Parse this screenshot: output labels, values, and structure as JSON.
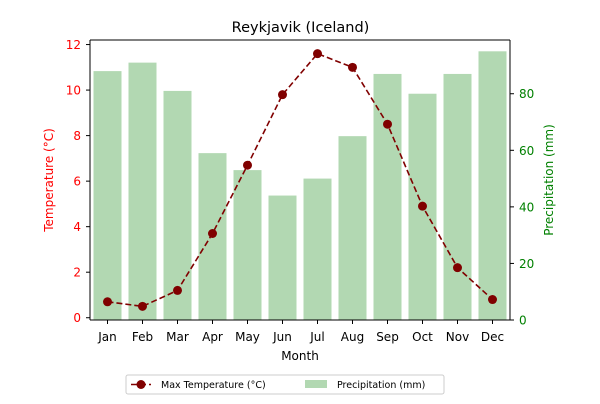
{
  "chart_data": {
    "type": "bar+line",
    "title": "Reykjavik (Iceland)",
    "categories": [
      "Jan",
      "Feb",
      "Mar",
      "Apr",
      "May",
      "Jun",
      "Jul",
      "Aug",
      "Sep",
      "Oct",
      "Nov",
      "Dec"
    ],
    "xlabel": "Month",
    "left_axis": {
      "label": "Temperature (°C)",
      "ylim": [
        -0.1,
        12.2
      ],
      "ticks": [
        0,
        2,
        4,
        6,
        8,
        10,
        12
      ],
      "color": "#ff0000"
    },
    "right_axis": {
      "label": "Precipitation (mm)",
      "ylim": [
        0,
        99
      ],
      "ticks": [
        0,
        20,
        40,
        60,
        80
      ],
      "color": "#008000"
    },
    "series": [
      {
        "name": "Max Temperature (°C)",
        "kind": "line",
        "axis": "left",
        "color": "#800000",
        "linestyle": "dashed",
        "marker": "circle",
        "values": [
          0.7,
          0.5,
          1.2,
          3.7,
          6.7,
          9.8,
          11.6,
          11.0,
          8.5,
          4.9,
          2.2,
          0.8
        ]
      },
      {
        "name": "Precipitation (mm)",
        "kind": "bar",
        "axis": "right",
        "color": "#b2d8b2",
        "values": [
          88,
          91,
          81,
          59,
          53,
          44,
          50,
          65,
          87,
          80,
          87,
          95
        ]
      }
    ],
    "legend": {
      "placement": "bottom-center",
      "items": [
        "Max Temperature (°C)",
        "Precipitation (mm)"
      ]
    },
    "grid": false
  }
}
